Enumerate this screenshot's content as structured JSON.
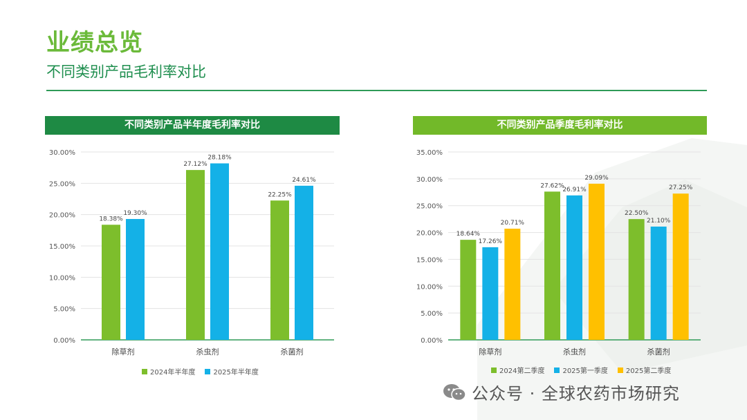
{
  "page": {
    "title": "业绩总览",
    "subtitle": "不同类别产品毛利率对比",
    "watermark": "公众号 · 全球农药市场研究"
  },
  "colors": {
    "green_dark": "#1E8A44",
    "green_light": "#72B929",
    "bar_green": "#7DBE2C",
    "bar_blue": "#14B1E7",
    "bar_yellow": "#FFC000"
  },
  "chart_data": [
    {
      "type": "bar",
      "title": "不同类别产品半年度毛利率对比",
      "categories": [
        "除草剂",
        "杀虫剂",
        "杀菌剂"
      ],
      "series": [
        {
          "name": "2024年半年度",
          "values": [
            18.38,
            27.12,
            22.25
          ],
          "labels": [
            "18.38%",
            "27.12%",
            "22.25%"
          ],
          "color": "#7DBE2C"
        },
        {
          "name": "2025年半年度",
          "values": [
            19.3,
            28.18,
            24.61
          ],
          "labels": [
            "19.30%",
            "28.18%",
            "24.61%"
          ],
          "color": "#14B1E7"
        }
      ],
      "ylim": [
        0,
        30
      ],
      "yticks": [
        "0.00%",
        "5.00%",
        "10.00%",
        "15.00%",
        "20.00%",
        "25.00%",
        "30.00%"
      ],
      "legend": "bottom"
    },
    {
      "type": "bar",
      "title": "不同类别产品季度毛利率对比",
      "categories": [
        "除草剂",
        "杀虫剂",
        "杀菌剂"
      ],
      "series": [
        {
          "name": "2024第二季度",
          "values": [
            18.64,
            27.62,
            22.5
          ],
          "labels": [
            "18.64%",
            "27.62%",
            "22.50%"
          ],
          "color": "#7DBE2C"
        },
        {
          "name": "2025第一季度",
          "values": [
            17.26,
            26.91,
            21.1
          ],
          "labels": [
            "17.26%",
            "26.91%",
            "21.10%"
          ],
          "color": "#14B1E7"
        },
        {
          "name": "2025第二季度",
          "values": [
            20.71,
            29.09,
            27.25
          ],
          "labels": [
            "20.71%",
            "29.09%",
            "27.25%"
          ],
          "color": "#FFC000"
        }
      ],
      "ylim": [
        0,
        35
      ],
      "yticks": [
        "0.00%",
        "5.00%",
        "10.00%",
        "15.00%",
        "20.00%",
        "25.00%",
        "30.00%",
        "35.00%"
      ],
      "legend": "bottom"
    }
  ]
}
